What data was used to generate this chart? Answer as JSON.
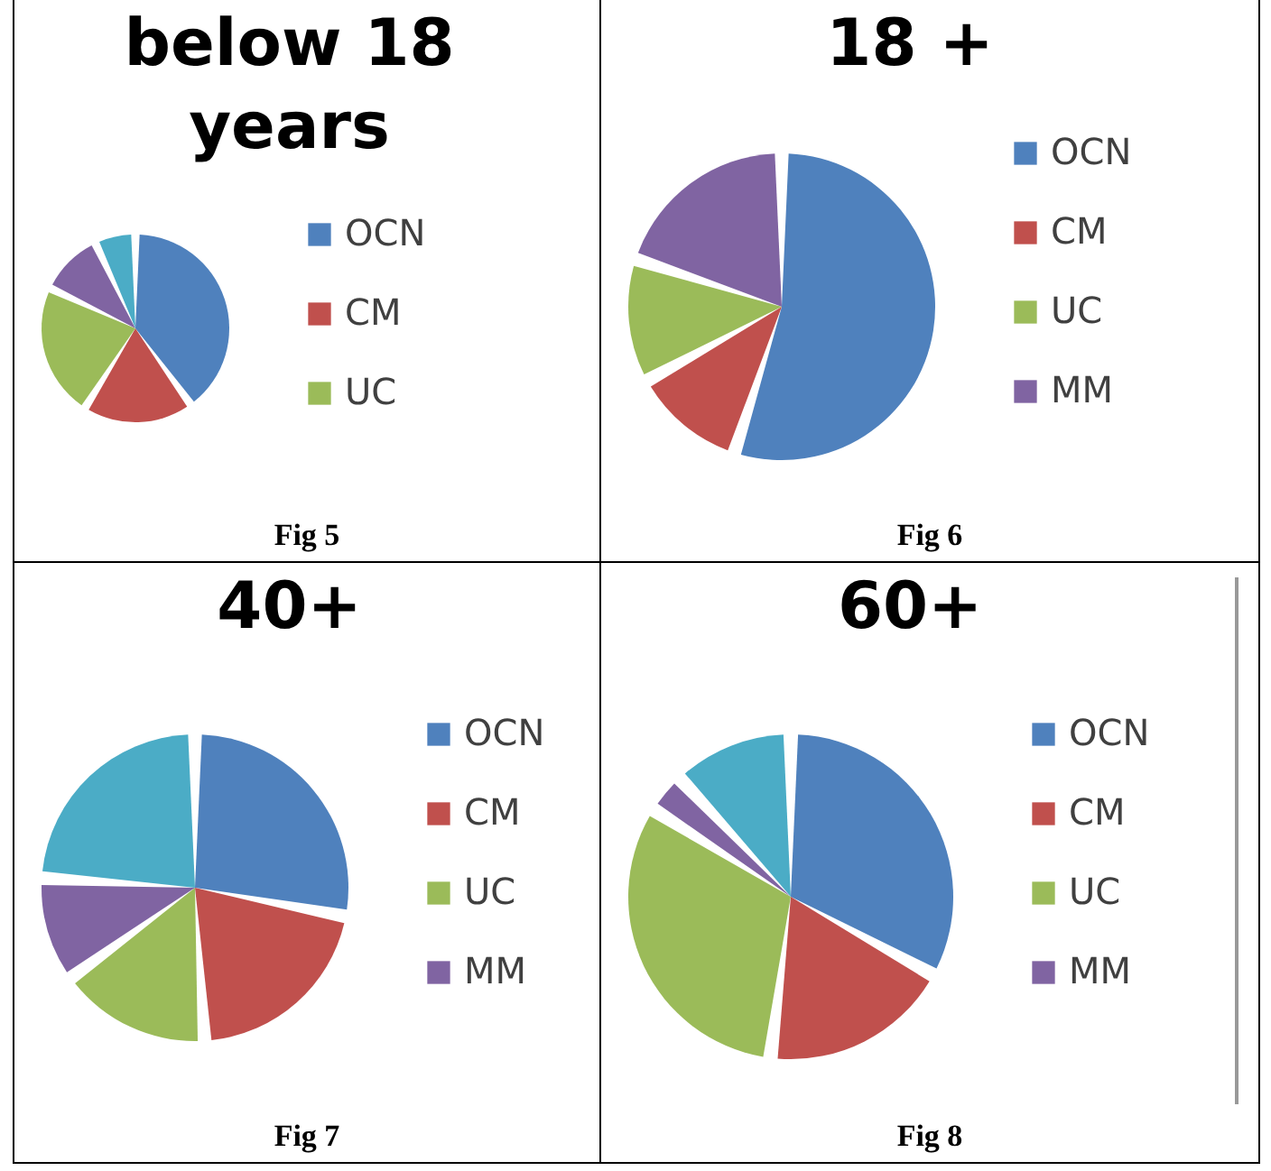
{
  "chart_data": [
    {
      "type": "pie",
      "title": "below 18 years",
      "categories": [
        "OCN",
        "CM",
        "UC",
        null,
        null
      ],
      "values": [
        40,
        19,
        23,
        11,
        7
      ],
      "colors": [
        "#4f81bd",
        "#c0504d",
        "#9bbb59",
        "#8064a2",
        "#4bacc6"
      ],
      "legend": "right",
      "annotations": [
        "Fig 5"
      ]
    },
    {
      "type": "pie",
      "title": "18 +",
      "categories": [
        "OCN",
        "CM",
        "UC",
        "MM"
      ],
      "values": [
        55,
        12,
        13,
        20
      ],
      "colors": [
        "#4f81bd",
        "#c0504d",
        "#9bbb59",
        "#8064a2"
      ],
      "legend": "right",
      "annotations": [
        "Fig 6"
      ]
    },
    {
      "type": "pie",
      "title": "40+",
      "categories": [
        "OCN",
        "CM",
        "UC",
        "MM",
        null
      ],
      "values": [
        28,
        21,
        16,
        11,
        24
      ],
      "colors": [
        "#4f81bd",
        "#c0504d",
        "#9bbb59",
        "#8064a2",
        "#4bacc6"
      ],
      "legend": "right",
      "annotations": [
        "Fig 7"
      ]
    },
    {
      "type": "pie",
      "title": "60+",
      "categories": [
        "OCN",
        "CM",
        "UC",
        "MM",
        null
      ],
      "values": [
        33,
        19,
        32,
        4,
        12
      ],
      "colors": [
        "#4f81bd",
        "#c0504d",
        "#9bbb59",
        "#8064a2",
        "#4bacc6"
      ],
      "legend": "right",
      "annotations": [
        "Fig 8"
      ]
    }
  ]
}
